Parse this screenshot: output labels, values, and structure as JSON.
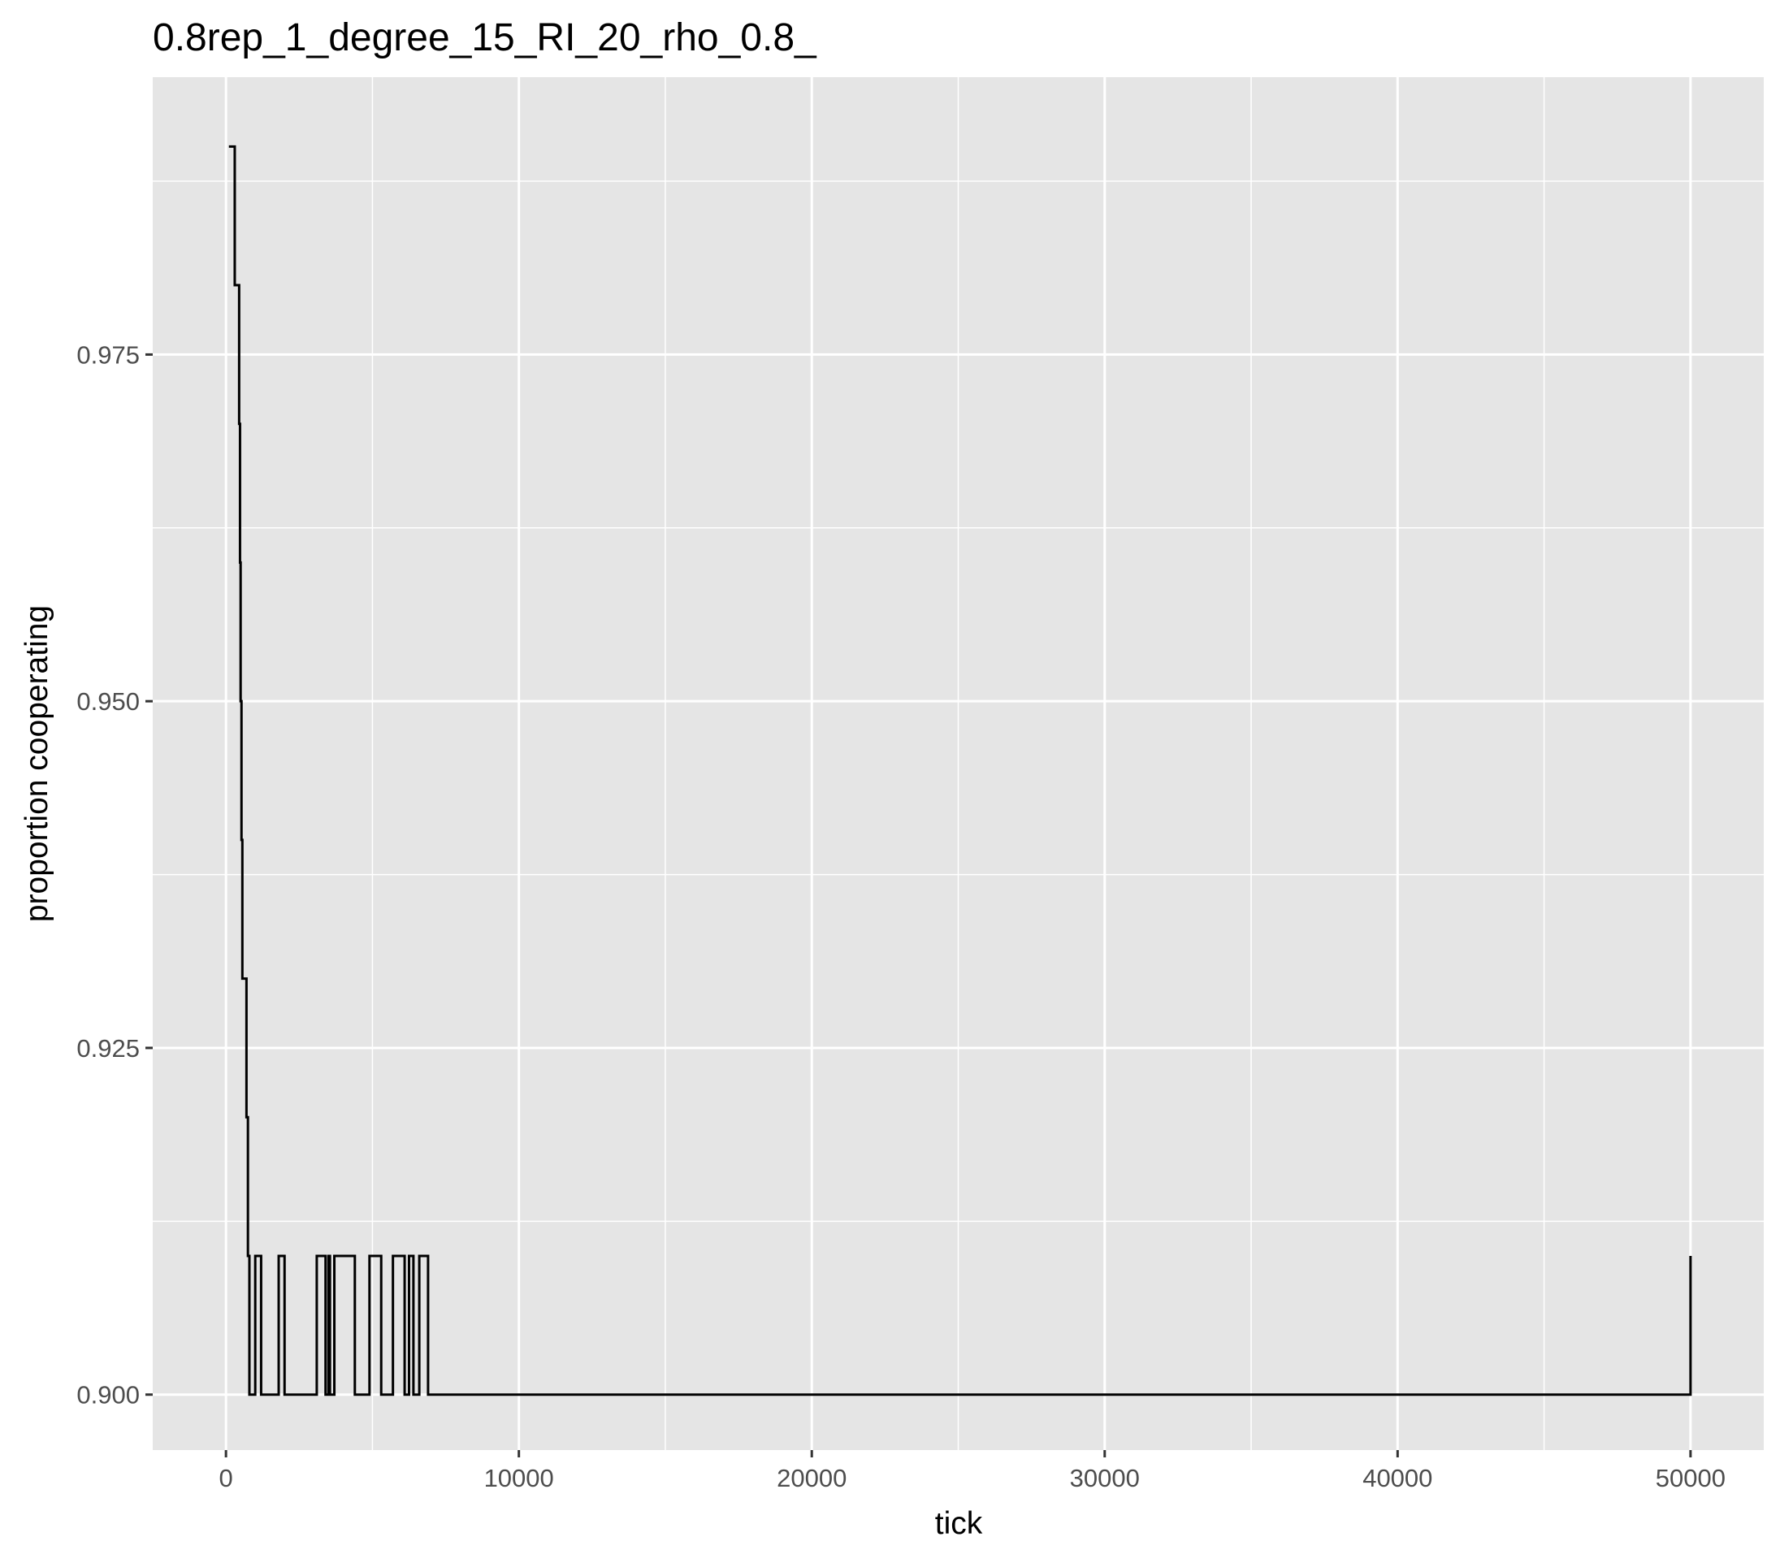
{
  "chart_data": {
    "type": "line",
    "step": true,
    "title": "0.8rep_1_degree_15_RI_20_rho_0.8_",
    "xlabel": "tick",
    "ylabel": "proportion cooperating",
    "xlim": [
      -2500,
      52500
    ],
    "ylim": [
      0.896,
      0.995
    ],
    "x_ticks": [
      0,
      10000,
      20000,
      30000,
      40000,
      50000
    ],
    "x_tick_labels": [
      "0",
      "10000",
      "20000",
      "30000",
      "40000",
      "50000"
    ],
    "x_minor_ticks": [
      5000,
      15000,
      25000,
      35000,
      45000
    ],
    "y_ticks": [
      0.9,
      0.925,
      0.95,
      0.975
    ],
    "y_tick_labels": [
      "0.900",
      "0.925",
      "0.950",
      "0.975"
    ],
    "y_minor_ticks": [
      0.9125,
      0.9375,
      0.9625,
      0.9875
    ],
    "grid": true,
    "colors": {
      "panel": "#e5e5e5",
      "grid": "#ffffff",
      "line": "#000000",
      "tick": "#333333"
    },
    "series": [
      {
        "x": [
          100,
          300,
          450,
          480,
          500,
          530,
          560,
          700,
          750,
          800,
          1000,
          1200,
          1800,
          2000,
          3100,
          3400,
          3500,
          3550,
          3700,
          4400,
          4900,
          5300,
          5700,
          6100,
          6250,
          6400,
          6600,
          6900,
          50000
        ],
        "y": [
          0.99,
          0.98,
          0.97,
          0.96,
          0.95,
          0.94,
          0.93,
          0.92,
          0.91,
          0.9,
          0.91,
          0.9,
          0.91,
          0.9,
          0.91,
          0.9,
          0.91,
          0.9,
          0.91,
          0.9,
          0.91,
          0.9,
          0.91,
          0.9,
          0.91,
          0.9,
          0.91,
          0.9,
          0.91
        ]
      }
    ]
  }
}
